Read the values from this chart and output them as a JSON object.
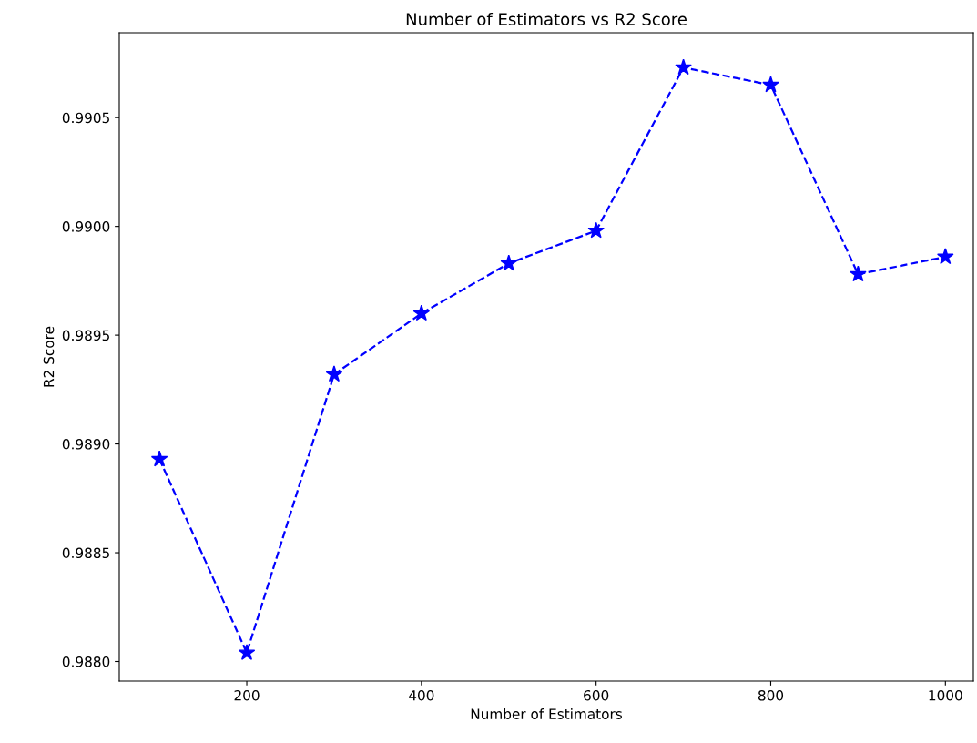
{
  "chart_data": {
    "type": "line",
    "title": "Number of Estimators vs R2 Score",
    "xlabel": "Number of Estimators",
    "ylabel": "R2 Score",
    "x": [
      100,
      200,
      300,
      400,
      500,
      600,
      700,
      800,
      900,
      1000
    ],
    "series": [
      {
        "color": "#0000ff",
        "values": [
          0.98893,
          0.98804,
          0.98932,
          0.9896,
          0.98983,
          0.98998,
          0.99073,
          0.99065,
          0.98978,
          0.98986
        ]
      }
    ],
    "marker": "star",
    "line_style": "dashed",
    "grid": false,
    "xlim": [
      54,
      1032
    ],
    "ylim": [
      0.98791,
      0.99089
    ],
    "xticks": [
      200,
      400,
      600,
      800,
      1000
    ],
    "yticks": [
      {
        "value": 0.988,
        "label": "0.9880"
      },
      {
        "value": 0.9885,
        "label": "0.9885"
      },
      {
        "value": 0.989,
        "label": "0.9890"
      },
      {
        "value": 0.9895,
        "label": "0.9895"
      },
      {
        "value": 0.99,
        "label": "0.9900"
      },
      {
        "value": 0.9905,
        "label": "0.9905"
      }
    ]
  }
}
